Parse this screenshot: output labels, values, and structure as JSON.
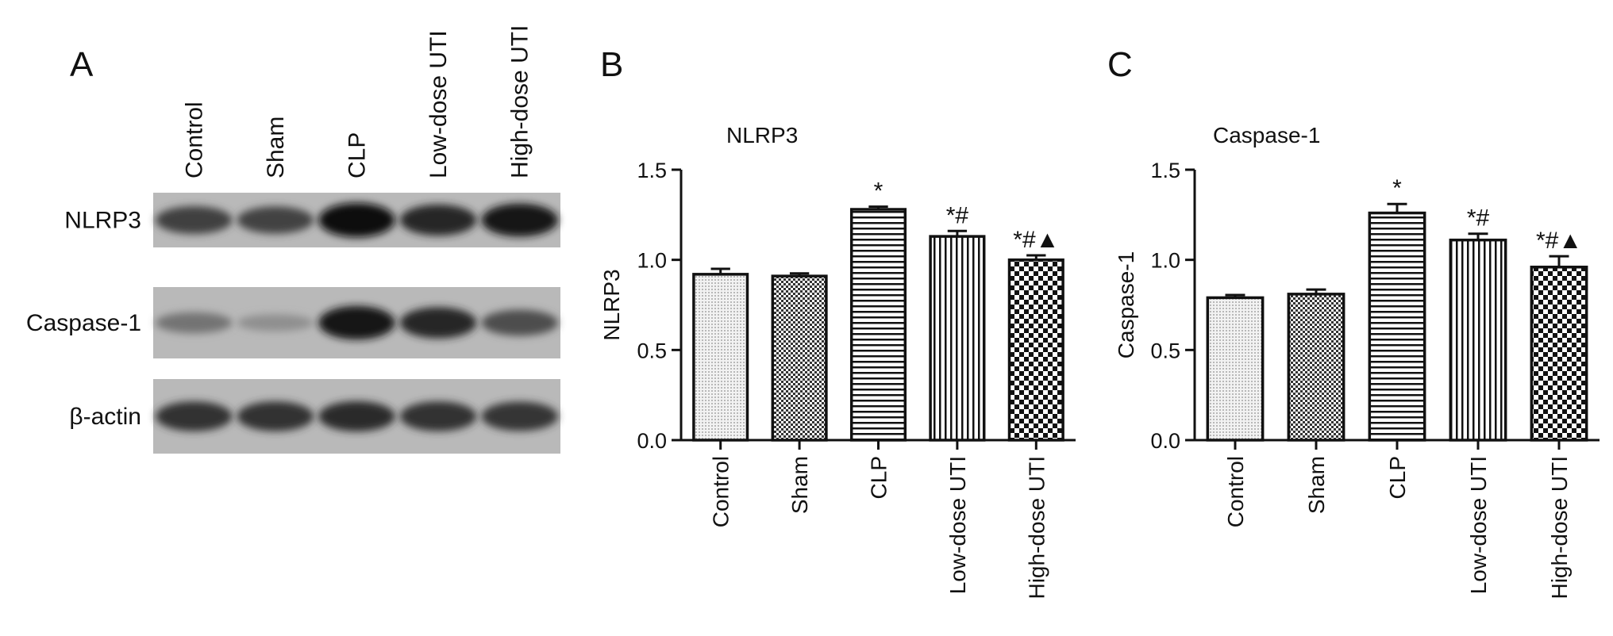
{
  "panel_a": {
    "letter": "A",
    "lanes": [
      "Control",
      "Sham",
      "CLP",
      "Low-dose UTI",
      "High-dose UTI"
    ],
    "rows": [
      {
        "label": "NLRP3",
        "intensities": [
          0.72,
          0.7,
          0.98,
          0.85,
          0.93
        ]
      },
      {
        "label": "Caspase-1",
        "intensities": [
          0.45,
          0.3,
          0.95,
          0.85,
          0.65
        ]
      },
      {
        "label": "β-actin",
        "intensities": [
          0.8,
          0.8,
          0.82,
          0.8,
          0.78
        ]
      }
    ]
  },
  "chart_data": [
    {
      "type": "bar",
      "panel_letter": "B",
      "title": "NLRP3",
      "ylabel": "NLRP3",
      "xlabel": "",
      "ylim": [
        0,
        1.5
      ],
      "yticks": [
        "0.0",
        "0.5",
        "1.0",
        "1.5"
      ],
      "categories": [
        "Control",
        "Sham",
        "CLP",
        "Low-dose UTI",
        "High-dose UTI"
      ],
      "values": [
        0.92,
        0.91,
        1.28,
        1.13,
        1.0
      ],
      "errors": [
        0.03,
        0.015,
        0.015,
        0.03,
        0.025
      ],
      "significance": [
        "",
        "",
        "*",
        "*#",
        "*#▲"
      ],
      "patterns": [
        "dots",
        "checker",
        "hlines",
        "vlines",
        "bigchecker"
      ],
      "grid": false
    },
    {
      "type": "bar",
      "panel_letter": "C",
      "title": "Caspase-1",
      "ylabel": "Caspase-1",
      "xlabel": "",
      "ylim": [
        0,
        1.5
      ],
      "yticks": [
        "0.0",
        "0.5",
        "1.0",
        "1.5"
      ],
      "categories": [
        "Control",
        "Sham",
        "CLP",
        "Low-dose UTI",
        "High-dose UTI"
      ],
      "values": [
        0.79,
        0.81,
        1.26,
        1.11,
        0.96
      ],
      "errors": [
        0.015,
        0.025,
        0.05,
        0.035,
        0.06
      ],
      "significance": [
        "",
        "",
        "*",
        "*#",
        "*#▲"
      ],
      "patterns": [
        "dots",
        "checker",
        "hlines",
        "vlines",
        "bigchecker"
      ],
      "grid": false
    }
  ]
}
